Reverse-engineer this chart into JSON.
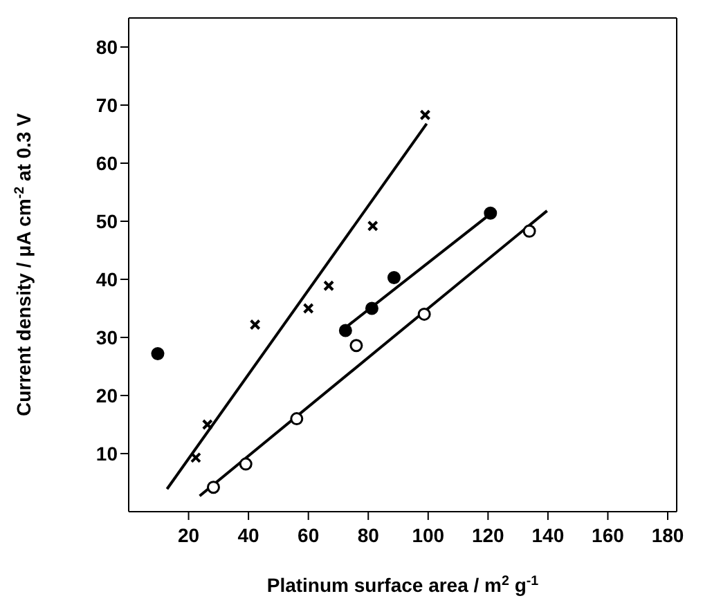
{
  "chart_data": {
    "type": "scatter",
    "xlabel": "Platinum surface area  /  m$^{2}$ g$^{-1}$",
    "ylabel": "Current density / μA cm$^{-2}$ at 0.3 V",
    "xlim": [
      0,
      183
    ],
    "ylim": [
      0,
      85
    ],
    "xticks": [
      20,
      40,
      60,
      80,
      100,
      120,
      140,
      160,
      180
    ],
    "yticks": [
      10,
      20,
      30,
      40,
      50,
      60,
      70,
      80
    ],
    "grid": false,
    "legend": false,
    "series": [
      {
        "type": "scatter",
        "marker": "cross",
        "color": "#000000",
        "x": [
          22.4,
          26.3,
          42.2,
          60,
          66.8,
          81.5,
          99
        ],
        "values": [
          9.3,
          15,
          32.2,
          35,
          38.9,
          49.2,
          68.3
        ]
      },
      {
        "type": "scatter",
        "marker": "circle",
        "color": "#000000",
        "x": [
          9.7,
          72.4,
          81.2,
          88.6,
          120.8
        ],
        "values": [
          27.2,
          31.2,
          35,
          40.3,
          51.4
        ]
      },
      {
        "type": "scatter",
        "marker": "circle",
        "color": "#ffffff",
        "x": [
          28.3,
          39.1,
          56.1,
          76,
          98.7,
          133.8
        ],
        "values": [
          4.2,
          8.2,
          16,
          28.6,
          34,
          48.3
        ]
      },
      {
        "type": "line",
        "color": "#000000",
        "x": [
          12.8,
          99.5
        ],
        "values": [
          3.9,
          66.8
        ]
      },
      {
        "type": "line",
        "color": "#000000",
        "x": [
          72.4,
          119.4
        ],
        "values": [
          31.7,
          50.7
        ]
      },
      {
        "type": "line",
        "color": "#000000",
        "x": [
          23.7,
          139.7
        ],
        "values": [
          2.7,
          51.8
        ]
      }
    ]
  }
}
